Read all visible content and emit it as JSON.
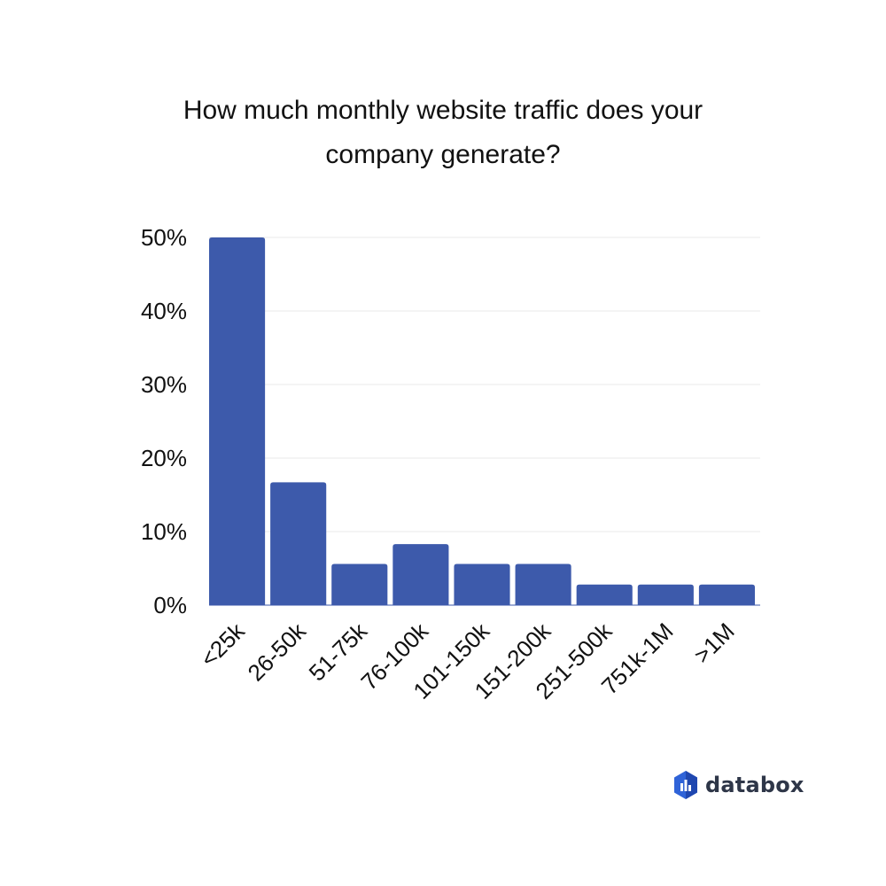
{
  "title": {
    "line1": "How much monthly website traffic does your",
    "line2": "company generate?"
  },
  "brand": {
    "name": "databox",
    "icon": "databox-logo-icon"
  },
  "colors": {
    "bar": "#3d5aab",
    "grid": "#e8e8e8",
    "text": "#111111"
  },
  "chart_data": {
    "type": "bar",
    "title": "How much monthly website traffic does your company generate?",
    "xlabel": "",
    "ylabel": "",
    "categories": [
      "<25k",
      "26-50k",
      "51-75k",
      "76-100k",
      "101-150k",
      "151-200k",
      "251-500k",
      "751k-1M",
      ">1M"
    ],
    "values": [
      50,
      16.7,
      5.6,
      8.3,
      5.6,
      5.6,
      2.8,
      2.8,
      2.8
    ],
    "ylim": [
      0,
      50
    ],
    "yticks": [
      "0%",
      "10%",
      "20%",
      "30%",
      "40%",
      "50%"
    ],
    "grid": true,
    "legend": "none"
  }
}
